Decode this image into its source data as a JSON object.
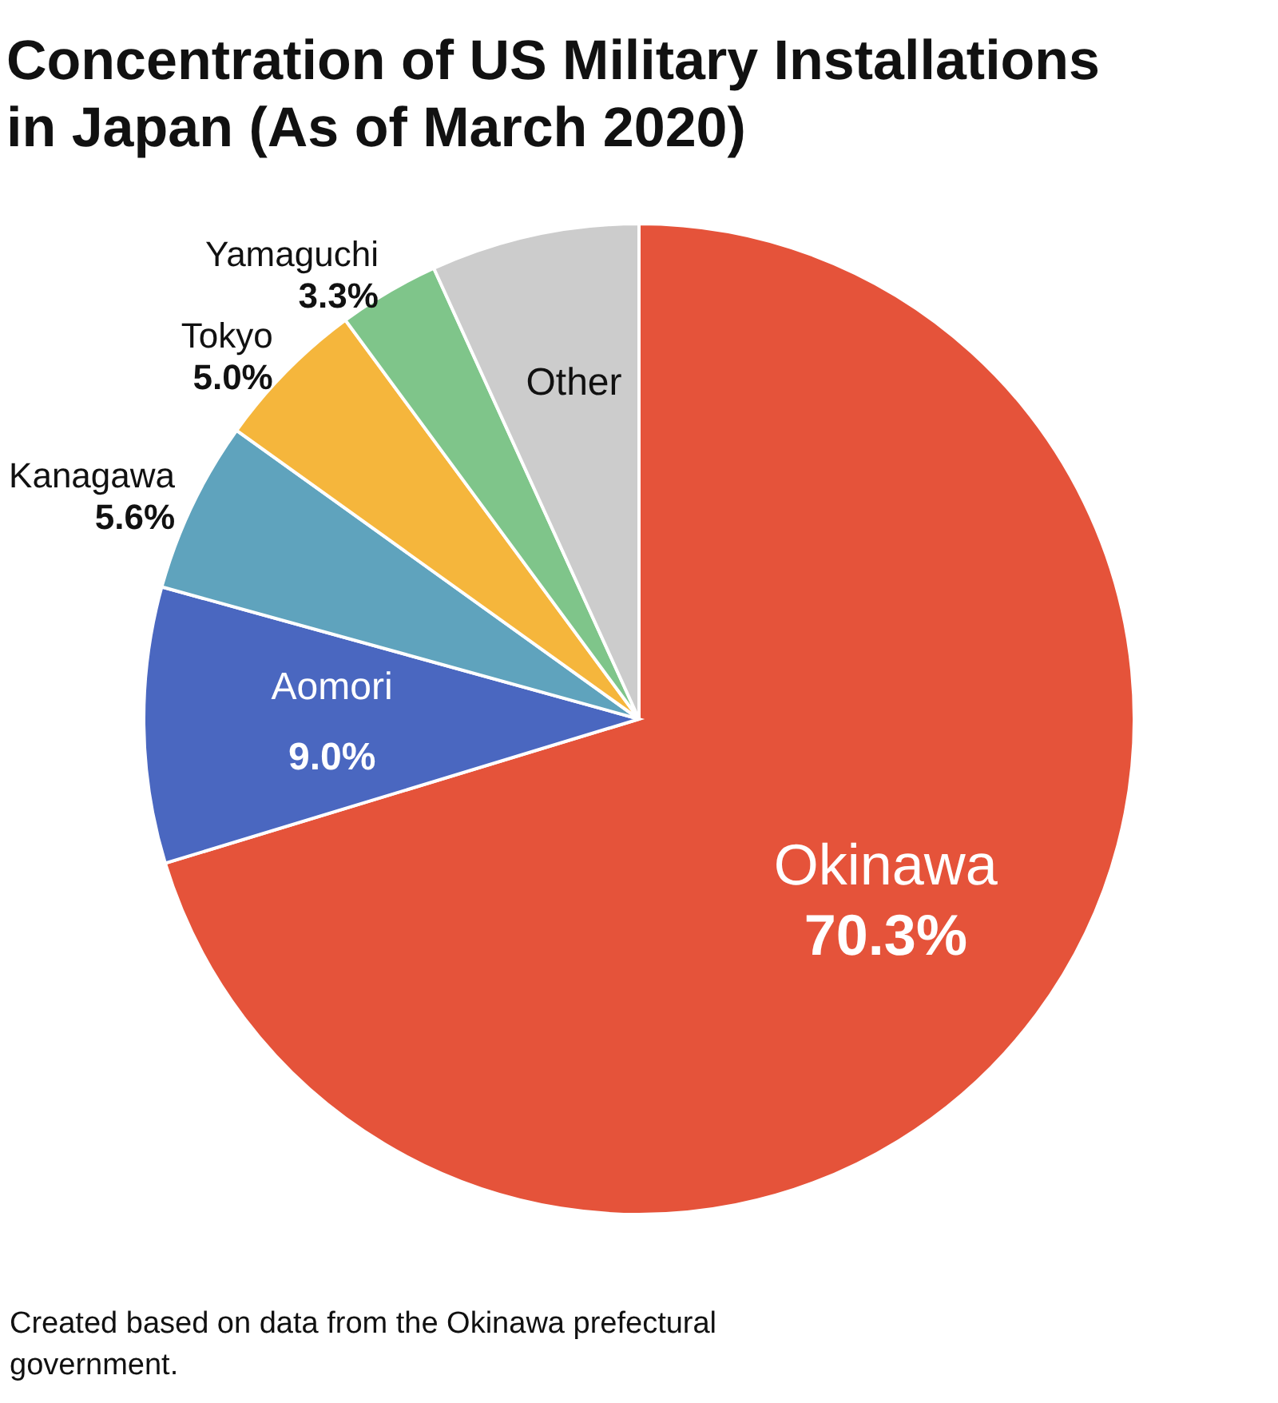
{
  "chart_data": {
    "type": "pie",
    "title": "Concentration of US Military Installations in Japan (As of March 2020)",
    "categories": [
      "Okinawa",
      "Aomori",
      "Kanagawa",
      "Tokyo",
      "Yamaguchi",
      "Other"
    ],
    "values": [
      70.3,
      9.0,
      5.6,
      5.0,
      3.3,
      6.8
    ],
    "value_labels": [
      "70.3%",
      "9.0%",
      "5.6%",
      "5.0%",
      "3.3%",
      null
    ],
    "colors": [
      "#e5533a",
      "#4a67c0",
      "#5fa3bd",
      "#f5b63c",
      "#7fc58a",
      "#cccccc"
    ],
    "annotations": [
      "Created based on data from the Okinawa prefectural government."
    ]
  }
}
